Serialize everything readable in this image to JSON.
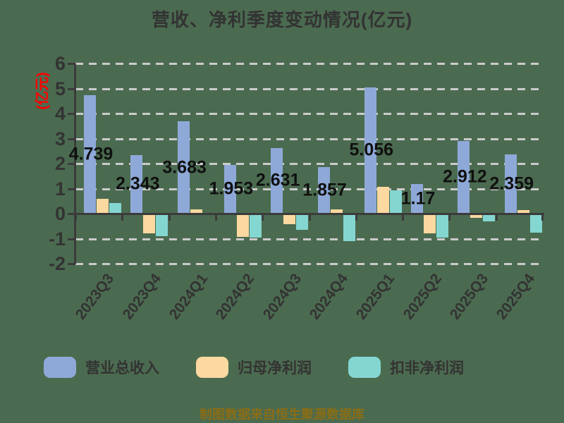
{
  "title": "营收、净利季度变动情况(亿元)",
  "y_axis_unit": "(亿元)",
  "footer": "制图数据来自恒生聚源数据库",
  "colors": {
    "background": "#4b6b50",
    "axis": "#3b3b3b",
    "gridline": "#cbcbcb",
    "title_text": "#333333",
    "axis_text": "#333333",
    "data_label_text": "#101010",
    "y_unit_text": "#ff0000",
    "footer_text": "#8a6d15",
    "revenue_bar": "#8ea9d8",
    "net_profit_bar": "#fcd9a0",
    "deducted_profit_bar": "#84d6d1"
  },
  "chart_data": {
    "type": "bar",
    "title": "营收、净利季度变动情况(亿元)",
    "xlabel": "",
    "ylabel": "(亿元)",
    "ylim": [
      -2,
      6
    ],
    "yticks": [
      6,
      5,
      4,
      3,
      2,
      1,
      0,
      -1,
      -2
    ],
    "grid": true,
    "grid_style": "dashed",
    "legend_position": "bottom",
    "categories": [
      "2023Q3",
      "2023Q4",
      "2024Q1",
      "2024Q2",
      "2024Q3",
      "2024Q4",
      "2025Q1",
      "2025Q2",
      "2025Q3",
      "2025Q4"
    ],
    "series": [
      {
        "name": "营业总收入",
        "color": "#8ea9d8",
        "values": [
          4.739,
          2.343,
          3.683,
          1.953,
          2.631,
          1.857,
          5.056,
          1.17,
          2.912,
          2.359
        ],
        "data_labels": [
          "4.739",
          "2.343",
          "3.683",
          "1.953",
          "2.631",
          "1.857",
          "5.056",
          "1.17",
          "2.912",
          "2.359"
        ]
      },
      {
        "name": "归母净利润",
        "color": "#fcd9a0",
        "values": [
          0.58,
          -0.78,
          0.18,
          -0.93,
          -0.41,
          0.18,
          1.07,
          -0.78,
          -0.18,
          0.14
        ]
      },
      {
        "name": "扣非净利润",
        "color": "#84d6d1",
        "values": [
          0.42,
          -0.9,
          -0.07,
          -0.97,
          -0.64,
          -1.1,
          0.92,
          -0.97,
          -0.3,
          -0.75
        ]
      }
    ]
  }
}
